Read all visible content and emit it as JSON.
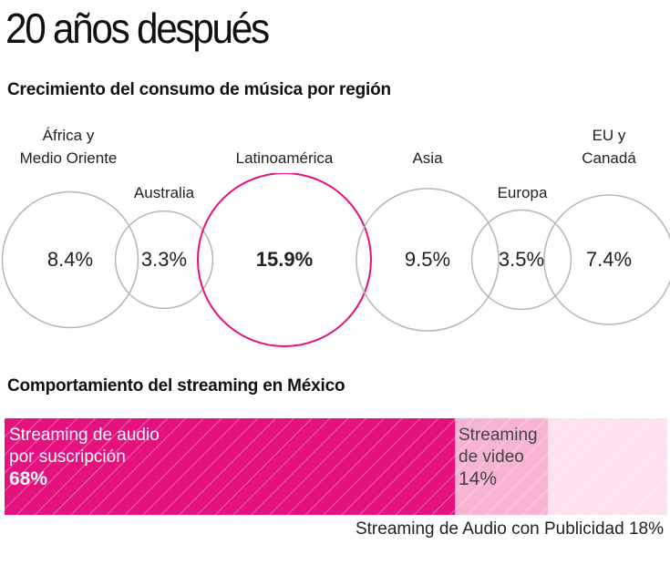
{
  "title": "20 años después",
  "chart_data": [
    {
      "type": "bubble",
      "title": "Crecimiento del consumo de música por región",
      "unit": "%",
      "regions": [
        {
          "label_lines": [
            "África y",
            "Medio Oriente"
          ],
          "value": 8.4,
          "display": "8.4%",
          "highlight": false
        },
        {
          "label_lines": [
            "Australia"
          ],
          "value": 3.3,
          "display": "3.3%",
          "highlight": false
        },
        {
          "label_lines": [
            "Latinoamérica"
          ],
          "value": 15.9,
          "display": "15.9%",
          "highlight": true
        },
        {
          "label_lines": [
            "Asia"
          ],
          "value": 9.5,
          "display": "9.5%",
          "highlight": false
        },
        {
          "label_lines": [
            "Europa"
          ],
          "value": 3.5,
          "display": "3.5%",
          "highlight": false
        },
        {
          "label_lines": [
            "EU y",
            "Canadá"
          ],
          "value": 7.4,
          "display": "7.4%",
          "highlight": false
        }
      ]
    },
    {
      "type": "stacked-bar",
      "title": "Comportamiento del streaming en México",
      "unit": "%",
      "segments": [
        {
          "label_lines": [
            "Streaming de audio",
            "por suscripción"
          ],
          "value": 68,
          "display": "68%"
        },
        {
          "label_lines": [
            "Streaming",
            "de video"
          ],
          "value": 14,
          "display": "14%"
        },
        {
          "label": "Streaming de Audio con Publicidad",
          "value": 18,
          "display": "18%"
        }
      ]
    }
  ],
  "colors": {
    "accent": "#e5117e",
    "video": "#f7b3d4",
    "ads": "#fde1ee",
    "circle_stroke": "#b5b5b5"
  }
}
